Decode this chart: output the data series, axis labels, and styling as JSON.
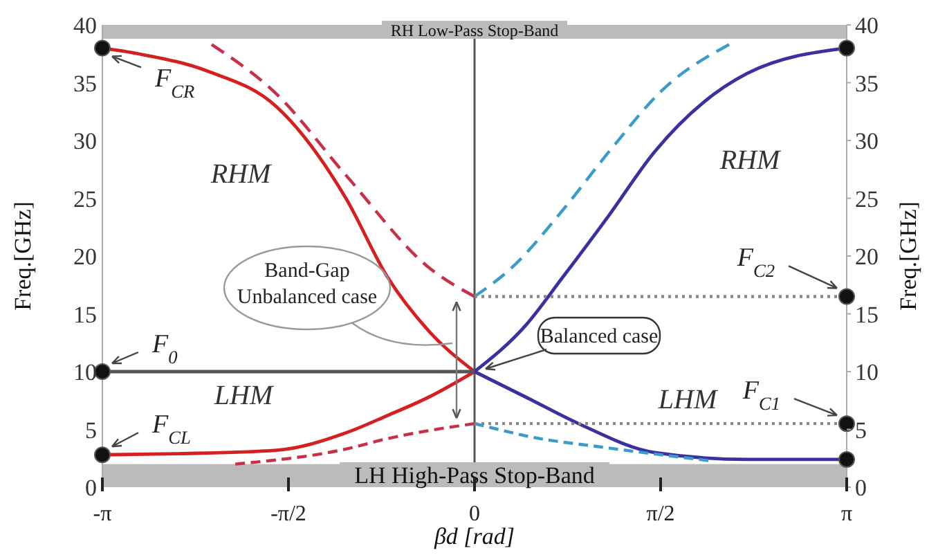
{
  "chart_data": {
    "type": "line",
    "xlabel": "βd [rad]",
    "ylabel": "Freq.[GHz]",
    "y2label": "Freq.[GHz]",
    "xlim": [
      -3.1416,
      3.1416
    ],
    "xticks": [
      {
        "value": -3.1416,
        "label": "-π"
      },
      {
        "value": -1.5708,
        "label": "-π/2"
      },
      0,
      {
        "value": 1.5708,
        "label": "π/2"
      },
      {
        "value": 3.1416,
        "label": "π"
      }
    ],
    "ylim": [
      0,
      40
    ],
    "yticks": [
      0,
      5,
      10,
      15,
      20,
      25,
      30,
      35,
      40
    ],
    "y2lim": [
      0,
      40
    ],
    "y2ticks": [
      0,
      5,
      10,
      15,
      20,
      25,
      30,
      35,
      40
    ],
    "series": [
      {
        "color": "#d42020",
        "line_style": "solid",
        "x": [
          -3.1416,
          -2.838,
          -2.254,
          -1.67,
          -1.086,
          -0.736,
          -0.385,
          0
        ],
        "values": [
          38,
          37.5,
          36,
          32.9,
          25,
          18.2,
          13.5,
          10
        ]
      },
      {
        "color": "#d42020",
        "line_style": "solid",
        "x": [
          -3.1416,
          -2.5,
          -1.67,
          -1.086,
          -0.736,
          -0.385,
          0
        ],
        "values": [
          2.8,
          2.9,
          3.2,
          4.7,
          6.2,
          7.8,
          10
        ]
      },
      {
        "color": "#3a30a0",
        "line_style": "solid",
        "x": [
          0,
          0.432,
          0.747,
          1.133,
          1.518,
          2.301,
          3.1416
        ],
        "values": [
          10,
          14,
          18.2,
          23.5,
          29,
          35.8,
          38
        ]
      },
      {
        "color": "#3a30a0",
        "line_style": "solid",
        "x": [
          0,
          0.432,
          0.899,
          1.518,
          2.301,
          3.1416
        ],
        "values": [
          10,
          7.8,
          5.4,
          3,
          2.4,
          2.4
        ]
      },
      {
        "color": "#c8304a",
        "line_style": "dashed",
        "x": [
          -2.219,
          -1.67,
          -1.086,
          -0.385,
          0
        ],
        "values": [
          38.3,
          34,
          27,
          19,
          16.5
        ]
      },
      {
        "color": "#c8304a",
        "line_style": "dashed",
        "x": [
          -2.02,
          -1.086,
          -0.736,
          -0.385,
          0
        ],
        "values": [
          2,
          3.3,
          4.2,
          4.9,
          5.5
        ]
      },
      {
        "color": "#3a9cc8",
        "line_style": "dashed",
        "x": [
          0,
          0.315,
          0.747,
          1.133,
          1.6,
          2.149
        ],
        "values": [
          16.5,
          19,
          24,
          29,
          34.5,
          38.3
        ]
      },
      {
        "color": "#3a9cc8",
        "line_style": "dashed",
        "x": [
          0,
          0.199,
          0.5,
          1.051,
          1.974
        ],
        "values": [
          5.5,
          5,
          4.3,
          3.5,
          2.3
        ]
      },
      {
        "color": "#555555",
        "line_style": "solid",
        "x": [
          -3.1416,
          0
        ],
        "values": [
          10,
          10
        ]
      },
      {
        "color": "#888888",
        "line_style": "dotted",
        "x": [
          0,
          3.1416
        ],
        "values": [
          16.5,
          16.5
        ]
      },
      {
        "color": "#888888",
        "line_style": "dotted",
        "x": [
          0,
          3.1416
        ],
        "values": [
          5.5,
          5.5
        ]
      },
      {
        "type": "scatter",
        "marker": "circle",
        "color": "#111111",
        "x": [
          -3.1416,
          -3.1416,
          -3.1416,
          3.1416,
          3.1416,
          3.1416,
          3.1416
        ],
        "values": [
          38,
          10,
          2.8,
          38,
          16.5,
          5.5,
          2.4
        ]
      }
    ],
    "ref_lines": [
      {
        "axis": "x",
        "value": 0,
        "color": "#555555"
      }
    ],
    "bands": [
      {
        "axis": "y",
        "from": 38.8,
        "to": 40,
        "label": "RH Low-Pass Stop-Band",
        "color": "#bbbbbb"
      },
      {
        "axis": "y",
        "from": 0,
        "to": 2,
        "label": "LH High-Pass Stop-Band",
        "color": "#bbbbbb"
      }
    ],
    "annotations": [
      {
        "text": "F$_{CR}$",
        "x": -3.1416,
        "y": 38
      },
      {
        "text": "F$_{0}$",
        "x": -3.1416,
        "y": 10
      },
      {
        "text": "F$_{CL}$",
        "x": -3.1416,
        "y": 2.8
      },
      {
        "text": "F$_{C2}$",
        "x": 3.1416,
        "y": 16.5
      },
      {
        "text": "F$_{C1}$",
        "x": 3.1416,
        "y": 5.5
      },
      "RHM",
      "RHM",
      "LHM",
      "LHM",
      "Band-Gap\nUnbalanced case",
      {
        "text": "Balanced case",
        "x": 0,
        "y": 10
      }
    ]
  }
}
